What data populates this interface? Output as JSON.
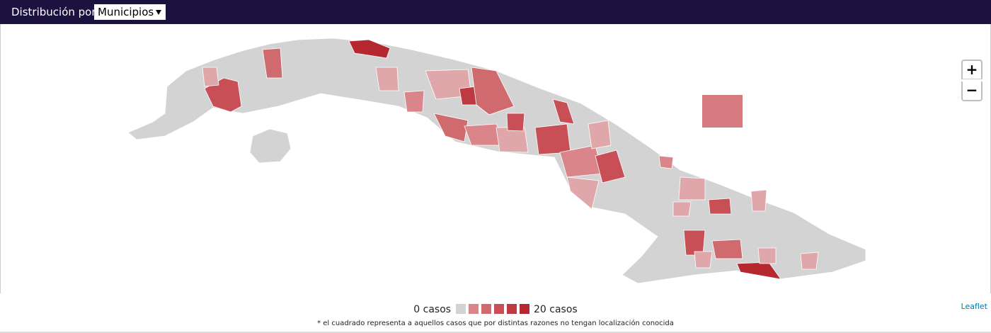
{
  "header": {
    "label": "Distribución por",
    "select": "Municipios"
  },
  "zoom": {
    "in": "+",
    "out": "−"
  },
  "attribution": "Leaflet",
  "legend": {
    "min_label": "0 casos",
    "max_label": "20 casos",
    "colors": [
      "#d3d3d3",
      "#d98589",
      "#cf6a6f",
      "#c74f55",
      "#bf3940",
      "#b52830"
    ]
  },
  "footnote": "* el cuadrado representa a aquellos casos que por distintas razones no tengan localización conocida"
}
